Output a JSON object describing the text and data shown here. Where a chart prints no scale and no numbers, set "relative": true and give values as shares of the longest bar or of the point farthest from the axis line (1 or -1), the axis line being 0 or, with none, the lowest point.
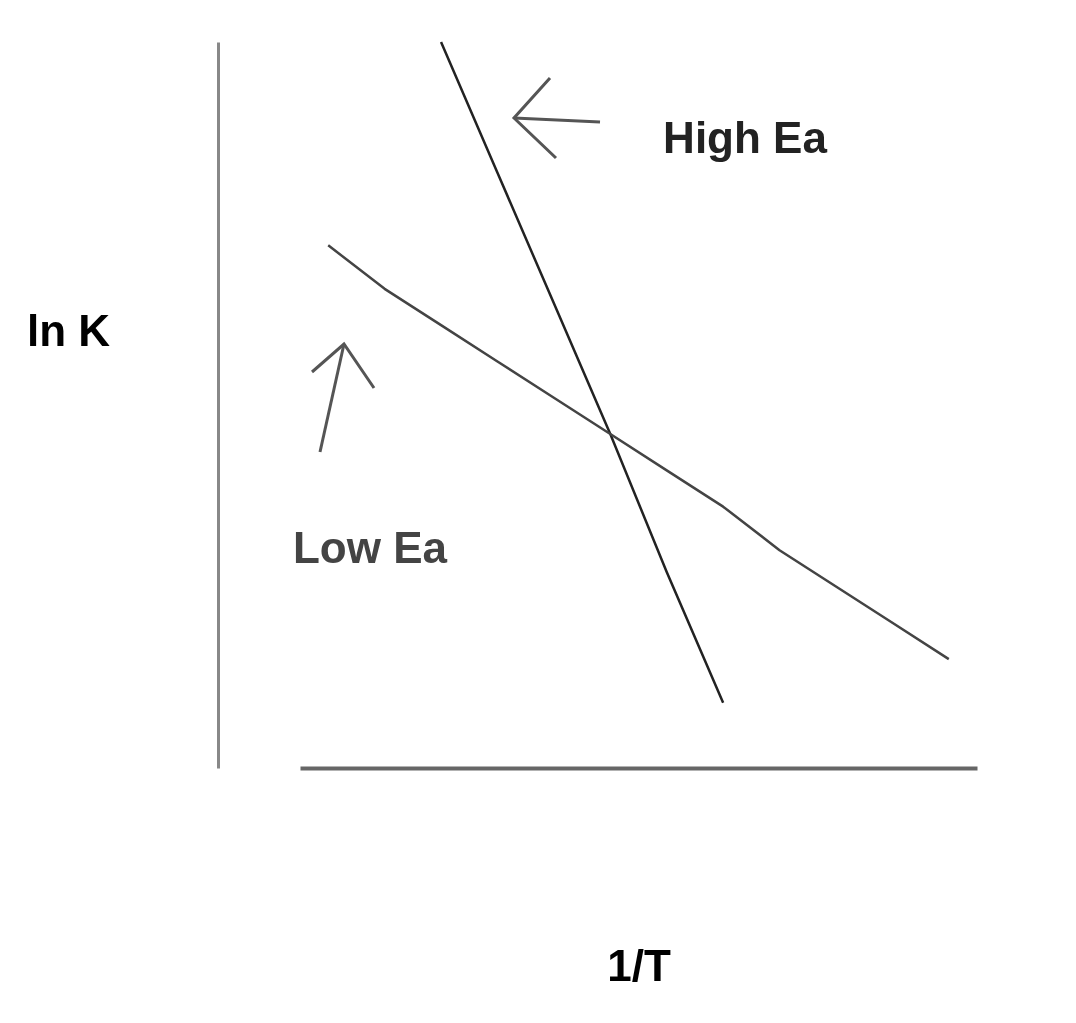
{
  "chart_data": {
    "type": "line",
    "xlabel": "1/T",
    "ylabel": "ln K",
    "relative": true,
    "grid": false,
    "marker": "none",
    "line_style": "solid",
    "categories": [
      null,
      null,
      null,
      null,
      null,
      null,
      null,
      null,
      null,
      null,
      null,
      null
    ],
    "series": [
      {
        "name": "High Ea",
        "color": "#222222",
        "values": [
          null,
          null,
          1,
          0.82,
          0.64,
          0.46,
          0.27,
          0.09,
          null,
          null,
          null,
          null
        ]
      },
      {
        "name": "Low Ea",
        "color": "#444444",
        "values": [
          0.72,
          0.66,
          0.61,
          0.56,
          0.51,
          0.46,
          0.41,
          0.36,
          0.3,
          0.25,
          0.2,
          0.15
        ]
      }
    ]
  }
}
